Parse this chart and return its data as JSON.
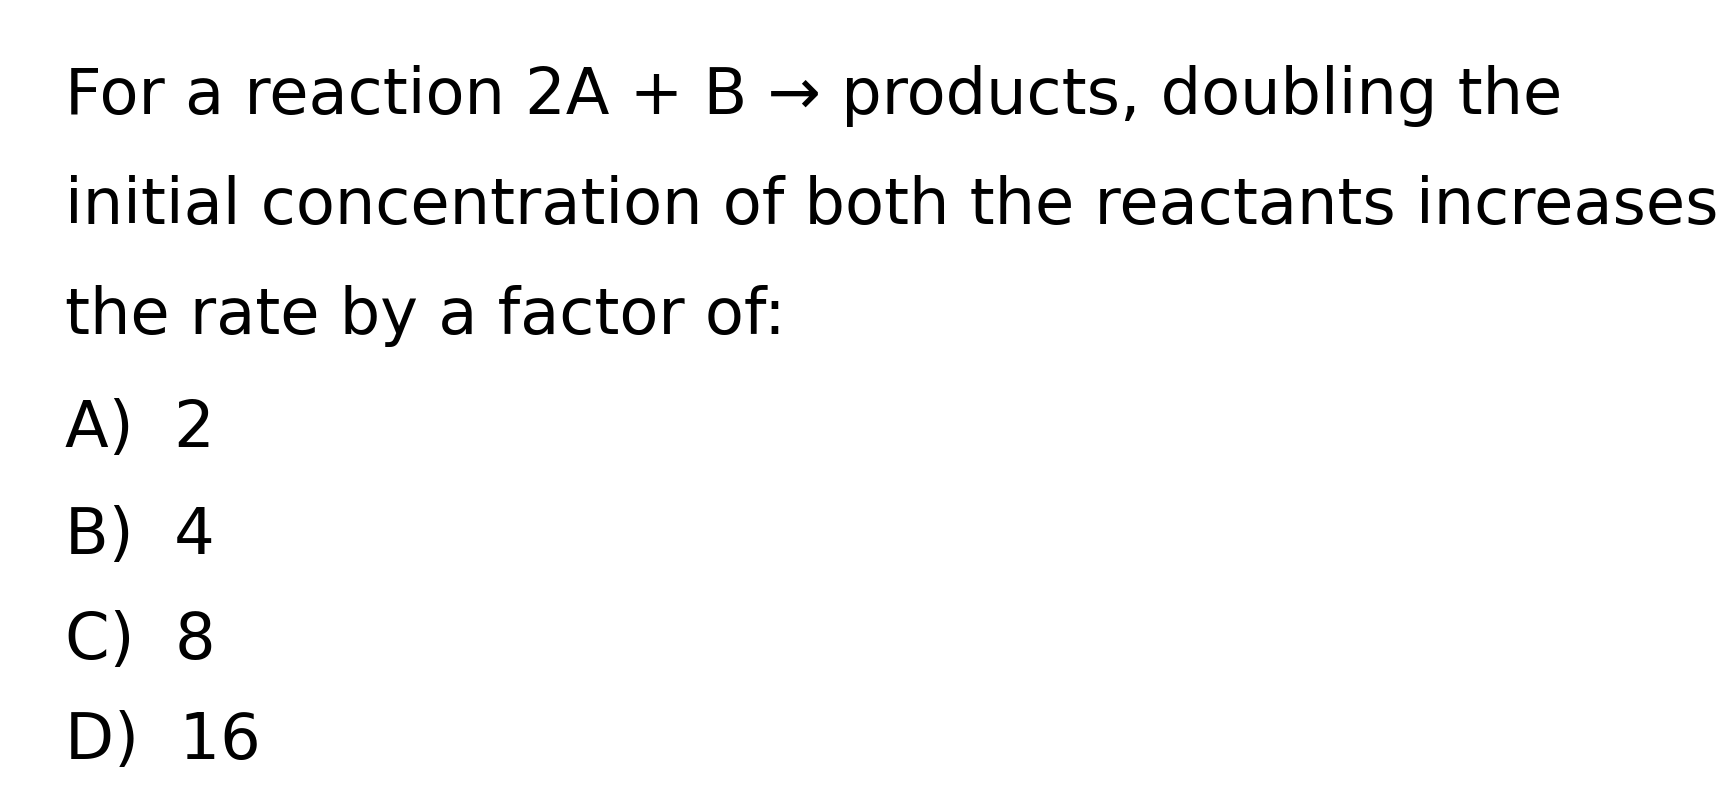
{
  "background_color": "#ffffff",
  "text_color": "#000000",
  "question_line1": "For a reaction 2A + B → products, doubling the",
  "question_line2": "initial concentration of both the reactants increases",
  "question_line3": "the rate by a factor of:",
  "options": [
    "A)  2",
    "B)  4",
    "C)  8",
    "D)  16"
  ],
  "font_size_question": 46,
  "font_size_options": 46,
  "font_family": "DejaVu Sans"
}
